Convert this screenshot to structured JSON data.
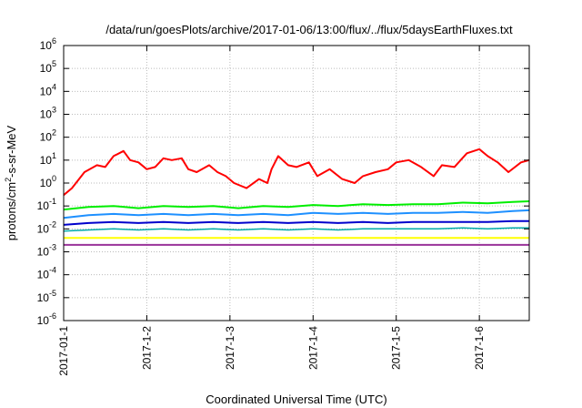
{
  "chart_data": {
    "type": "line",
    "title": "/data/run/goesPlots/archive/2017-01-06/13:00/flux/../flux/5daysEarthFluxes.txt",
    "xlabel": "Coordinated Universal Time (UTC)",
    "ylabel": {
      "pre": "protons/cm",
      "sup": "2",
      "post": "-s-sr-MeV"
    },
    "y_scale": "log",
    "ylim": [
      1e-06,
      1000000.0
    ],
    "xlim": [
      0,
      5.6
    ],
    "x_unit": "days since 2017-01-01",
    "grid": true,
    "x_ticks": [
      {
        "v": 0,
        "label": "2017-01-1"
      },
      {
        "v": 1,
        "label": "2017-1-2"
      },
      {
        "v": 2,
        "label": "2017-1-3"
      },
      {
        "v": 3,
        "label": "2017-1-4"
      },
      {
        "v": 4,
        "label": "2017-1-5"
      },
      {
        "v": 5,
        "label": "2017-1-6"
      }
    ],
    "y_ticks": [
      {
        "v": -6,
        "base": "10",
        "exp": "-6"
      },
      {
        "v": -5,
        "base": "10",
        "exp": "-5"
      },
      {
        "v": -4,
        "base": "10",
        "exp": "-4"
      },
      {
        "v": -3,
        "base": "10",
        "exp": "-3"
      },
      {
        "v": -2,
        "base": "10",
        "exp": "-2"
      },
      {
        "v": -1,
        "base": "10",
        "exp": "-1"
      },
      {
        "v": 0,
        "base": "10",
        "exp": "0"
      },
      {
        "v": 1,
        "base": "10",
        "exp": "1"
      },
      {
        "v": 2,
        "base": "10",
        "exp": "2"
      },
      {
        "v": 3,
        "base": "10",
        "exp": "3"
      },
      {
        "v": 4,
        "base": "10",
        "exp": "4"
      },
      {
        "v": 5,
        "base": "10",
        "exp": "5"
      },
      {
        "v": 6,
        "base": "10",
        "exp": "6"
      }
    ],
    "series": [
      {
        "color": "#ff0000",
        "width": 2,
        "x": [
          0,
          0.1,
          0.25,
          0.4,
          0.5,
          0.6,
          0.72,
          0.8,
          0.9,
          1.0,
          1.1,
          1.2,
          1.3,
          1.42,
          1.5,
          1.6,
          1.75,
          1.85,
          1.95,
          2.05,
          2.2,
          2.35,
          2.45,
          2.5,
          2.58,
          2.7,
          2.8,
          2.95,
          3.05,
          3.2,
          3.35,
          3.5,
          3.6,
          3.75,
          3.9,
          4.0,
          4.15,
          4.3,
          4.45,
          4.55,
          4.7,
          4.85,
          5.0,
          5.1,
          5.22,
          5.35,
          5.5,
          5.6
        ],
        "y": [
          0.3,
          0.6,
          3,
          6,
          5,
          15,
          25,
          10,
          8,
          4,
          5,
          12,
          10,
          12,
          4,
          3,
          6,
          3,
          2,
          1,
          0.6,
          1.5,
          1,
          4,
          15,
          6,
          5,
          8,
          2,
          4,
          1.5,
          1,
          2,
          3,
          4,
          8,
          10,
          5,
          2,
          6,
          5,
          20,
          30,
          15,
          8,
          3,
          8,
          10
        ]
      },
      {
        "color": "#00ee00",
        "width": 2,
        "x": [
          0,
          0.3,
          0.6,
          0.9,
          1.2,
          1.5,
          1.8,
          2.1,
          2.4,
          2.7,
          3.0,
          3.3,
          3.6,
          3.9,
          4.2,
          4.5,
          4.8,
          5.1,
          5.4,
          5.6
        ],
        "y": [
          0.07,
          0.09,
          0.1,
          0.08,
          0.1,
          0.09,
          0.1,
          0.08,
          0.1,
          0.09,
          0.11,
          0.1,
          0.12,
          0.11,
          0.12,
          0.12,
          0.14,
          0.13,
          0.15,
          0.16
        ]
      },
      {
        "color": "#1e90ff",
        "width": 2,
        "x": [
          0,
          0.3,
          0.6,
          0.9,
          1.2,
          1.5,
          1.8,
          2.1,
          2.4,
          2.7,
          3.0,
          3.3,
          3.6,
          3.9,
          4.2,
          4.5,
          4.8,
          5.1,
          5.4,
          5.6
        ],
        "y": [
          0.03,
          0.04,
          0.045,
          0.04,
          0.045,
          0.04,
          0.045,
          0.04,
          0.045,
          0.04,
          0.05,
          0.045,
          0.05,
          0.045,
          0.05,
          0.05,
          0.055,
          0.05,
          0.06,
          0.065
        ]
      },
      {
        "color": "#0000cc",
        "width": 2,
        "x": [
          0,
          0.3,
          0.6,
          0.9,
          1.2,
          1.5,
          1.8,
          2.1,
          2.4,
          2.7,
          3.0,
          3.3,
          3.6,
          3.9,
          4.2,
          4.5,
          4.8,
          5.1,
          5.4,
          5.6
        ],
        "y": [
          0.015,
          0.018,
          0.02,
          0.018,
          0.02,
          0.018,
          0.02,
          0.018,
          0.02,
          0.018,
          0.02,
          0.018,
          0.02,
          0.018,
          0.02,
          0.02,
          0.02,
          0.02,
          0.022,
          0.022
        ]
      },
      {
        "color": "#00aaaa",
        "width": 1.5,
        "x": [
          0,
          0.3,
          0.6,
          0.9,
          1.2,
          1.5,
          1.8,
          2.1,
          2.4,
          2.7,
          3.0,
          3.3,
          3.6,
          3.9,
          4.2,
          4.5,
          4.8,
          5.1,
          5.4,
          5.6
        ],
        "y": [
          0.008,
          0.009,
          0.01,
          0.009,
          0.01,
          0.009,
          0.01,
          0.009,
          0.01,
          0.009,
          0.01,
          0.009,
          0.01,
          0.01,
          0.01,
          0.01,
          0.011,
          0.01,
          0.011,
          0.011
        ]
      },
      {
        "color": "#ffff00",
        "width": 2,
        "x": [
          0,
          1,
          2,
          3,
          4,
          5,
          5.6
        ],
        "y": [
          0.004,
          0.004,
          0.004,
          0.004,
          0.004,
          0.004,
          0.004
        ]
      },
      {
        "color": "#993399",
        "width": 2,
        "x": [
          0,
          0.5,
          1.0,
          1.2,
          1.5,
          2.0,
          2.5,
          3.0,
          3.5,
          4.0,
          4.5,
          5.0,
          5.6
        ],
        "y": [
          0.002,
          0.002,
          0.002,
          0.002,
          0.002,
          0.002,
          0.002,
          0.002,
          0.002,
          0.002,
          0.002,
          0.002,
          0.002
        ]
      }
    ]
  }
}
